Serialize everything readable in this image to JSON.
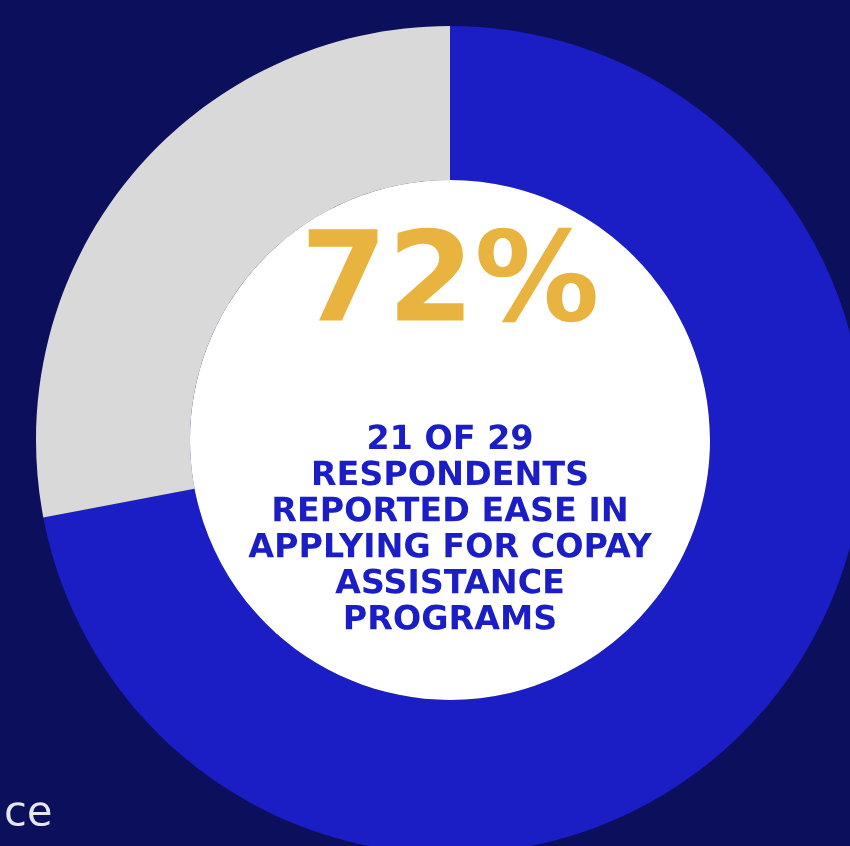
{
  "chart_data": {
    "type": "donut",
    "categories": [
      null,
      null
    ],
    "values": [
      72,
      28
    ],
    "colors": [
      "#1a1ec4",
      "#d9d9d9"
    ],
    "value_labels": [
      "72%",
      null
    ],
    "annotations": [
      "21 OF 29\nRESPONDENTS\nREPORTED EASE IN\nAPPLYING FOR COPAY\nASSISTANCE\nPROGRAMS",
      "ce"
    ]
  }
}
